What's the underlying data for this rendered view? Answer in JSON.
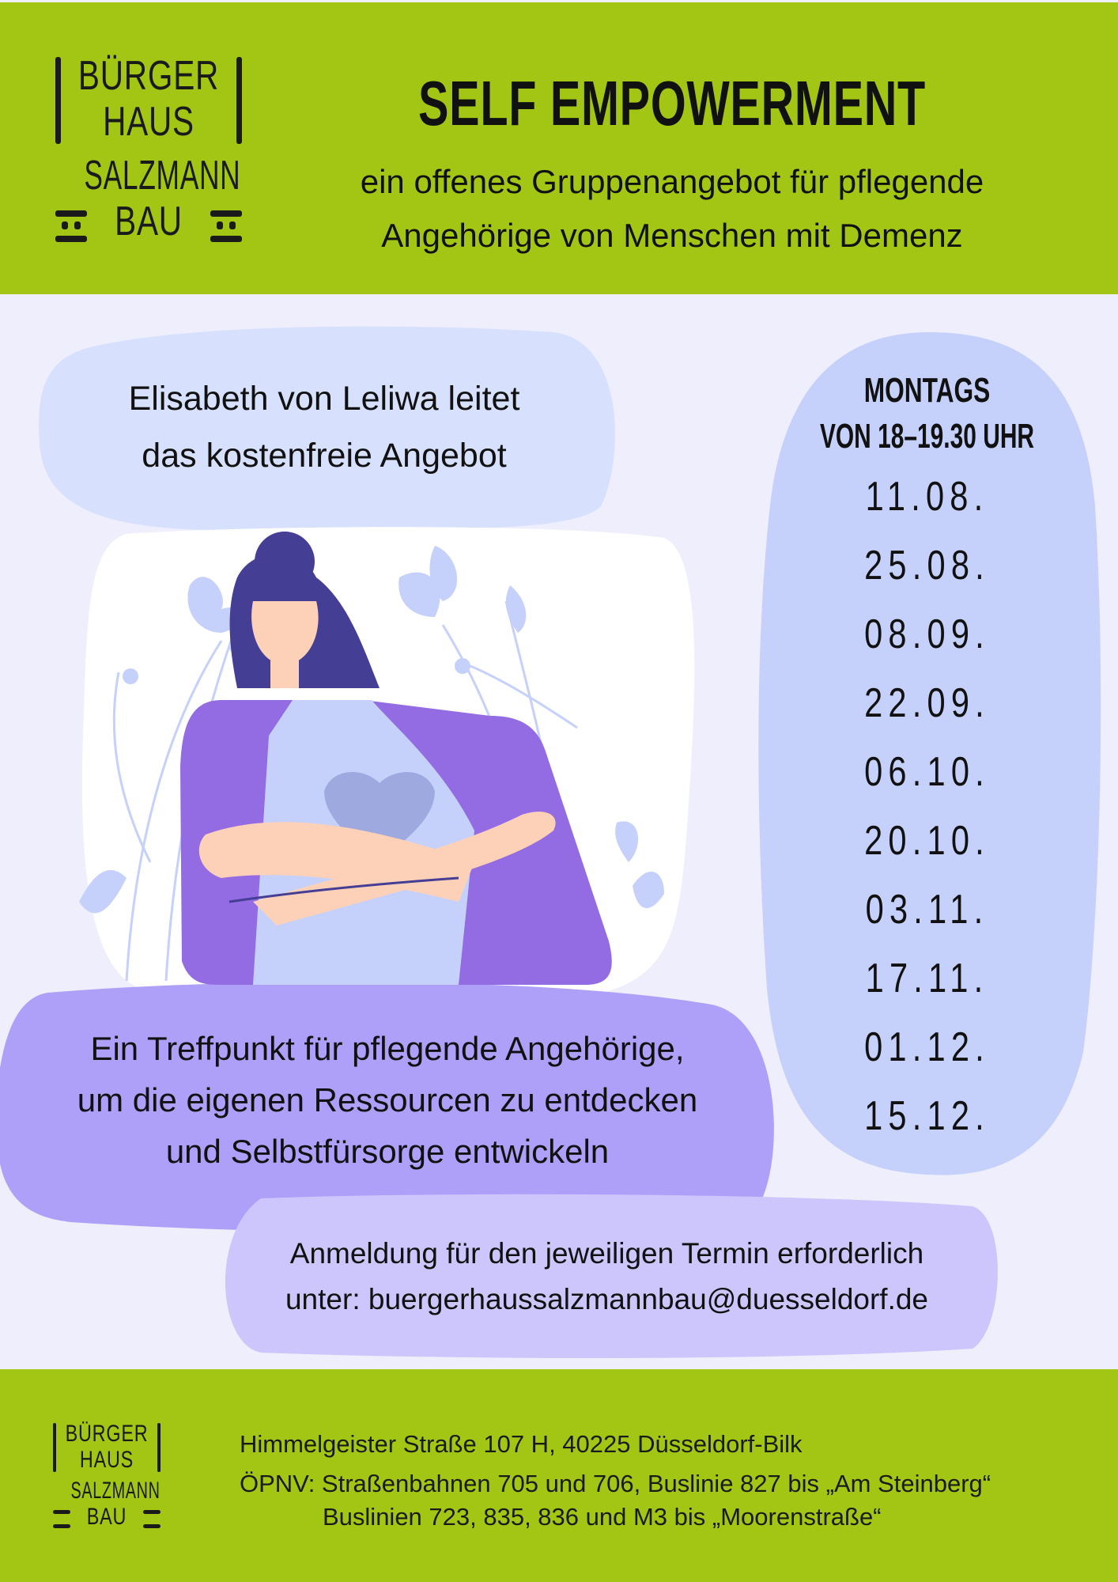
{
  "logo": {
    "lines": [
      "BÜRGER",
      "HAUS",
      "SALZMANN",
      "BAU"
    ]
  },
  "header": {
    "title": "SELF EMPOWERMENT",
    "subtitle_line1": "ein offenes Gruppenangebot für pflegende",
    "subtitle_line2": "Angehörige von Menschen mit Demenz"
  },
  "leader_bubble": {
    "line1": "Elisabeth von Leliwa leitet",
    "line2": "das kostenfreie Angebot"
  },
  "schedule": {
    "day": "MONTAGS",
    "time": "VON 18–19.30 UHR",
    "dates": [
      "11.08.",
      "25.08.",
      "08.09.",
      "22.09.",
      "06.10.",
      "20.10.",
      "03.11.",
      "17.11.",
      "01.12.",
      "15.12."
    ]
  },
  "description": {
    "line1": "Ein Treffpunkt für pflegende Angehörige,",
    "line2": "um die eigenen Ressourcen zu entdecken",
    "line3": "und Selbstfürsorge entwickeln"
  },
  "registration": {
    "line1": "Anmeldung für den jeweiligen Termin erforderlich",
    "line2": "unter: buergerhaussalzmannbau@duesseldorf.de"
  },
  "footer": {
    "address": "Himmelgeister Straße 107 H, 40225 Düsseldorf-Bilk",
    "transit_line1": "ÖPNV: Straßenbahnen 705 und 706, Buslinie 827 bis „Am Steinberg“",
    "transit_line2": "Buslinien 723, 835, 836 und M3 bis „Moorenstraße“"
  },
  "colors": {
    "green": "#a3c614",
    "background": "#efeefc",
    "light_blue": "#d7e1fd",
    "date_pill": "#c5d1fb",
    "purple": "#ae9ff8",
    "lavender": "#cdc6fc"
  }
}
